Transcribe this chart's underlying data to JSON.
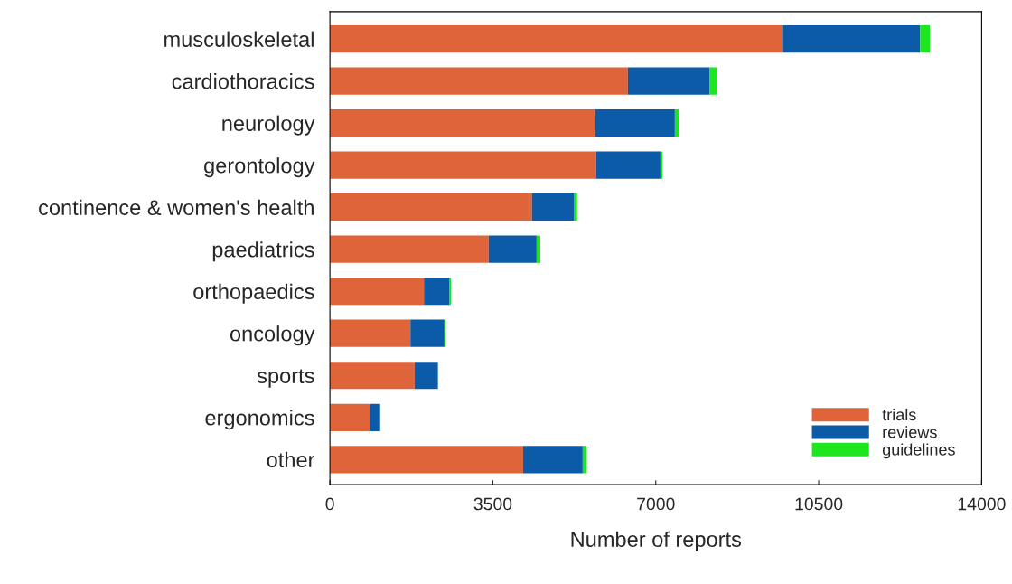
{
  "chart_data": {
    "type": "bar",
    "orientation": "horizontal",
    "stacked": true,
    "xlabel": "Number of reports",
    "categories": [
      "musculoskeletal",
      "cardiothoracics",
      "neurology",
      "gerontology",
      "continence & women's health",
      "paediatrics",
      "orthopaedics",
      "oncology",
      "sports",
      "ergonomics",
      "other"
    ],
    "series": [
      {
        "name": "trials",
        "color": "#e0643a",
        "values": [
          9730,
          6400,
          5700,
          5720,
          4340,
          3410,
          2020,
          1730,
          1820,
          870,
          4150
        ]
      },
      {
        "name": "reviews",
        "color": "#0b5ba8",
        "values": [
          2950,
          1760,
          1710,
          1380,
          910,
          1030,
          540,
          730,
          500,
          210,
          1280
        ]
      },
      {
        "name": "guidelines",
        "color": "#1ee61e",
        "values": [
          210,
          160,
          80,
          40,
          60,
          80,
          40,
          20,
          0,
          0,
          80
        ]
      }
    ],
    "xlim": [
      0,
      14000
    ],
    "xticks": [
      0,
      3500,
      7000,
      10500,
      14000
    ],
    "grid": false,
    "legend": "bottom right"
  }
}
